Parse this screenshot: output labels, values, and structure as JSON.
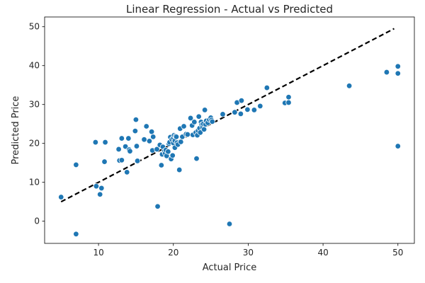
{
  "chart_data": {
    "type": "scatter",
    "title": "Linear Regression - Actual vs Predicted",
    "xlabel": "Actual Price",
    "ylabel": "Predicted Price",
    "xlim": [
      2.8,
      52.2
    ],
    "ylim": [
      -5.7,
      52.5
    ],
    "xticks": [
      10,
      20,
      30,
      40,
      50
    ],
    "yticks": [
      0,
      10,
      20,
      30,
      40,
      50
    ],
    "grid": false,
    "marker_color": "#1f77b4",
    "reference_line": {
      "style": "dashed",
      "color": "#000000",
      "x": [
        5,
        49.5
      ],
      "y": [
        5,
        49.5
      ]
    },
    "series": [
      {
        "x": [
          5.0,
          7.0,
          7.0,
          9.6,
          9.7,
          10.2,
          10.4,
          10.8,
          10.9,
          12.7,
          12.8,
          13.1,
          13.1,
          13.6,
          13.8,
          14.0,
          14.1,
          14.2,
          14.9,
          15.0,
          15.1,
          15.2,
          16.1,
          16.4,
          16.8,
          17.1,
          17.2,
          17.3,
          17.8,
          17.9,
          18.2,
          18.4,
          18.5,
          18.6,
          18.8,
          18.9,
          19.0,
          19.1,
          19.3,
          19.4,
          19.5,
          19.6,
          19.7,
          19.8,
          19.9,
          20.0,
          20.0,
          20.1,
          20.2,
          20.2,
          20.3,
          20.4,
          20.5,
          20.6,
          20.8,
          20.9,
          21.0,
          21.2,
          21.4,
          21.7,
          21.9,
          22.3,
          22.5,
          22.6,
          22.8,
          23.0,
          23.1,
          23.2,
          23.3,
          23.4,
          23.5,
          23.6,
          23.7,
          23.8,
          23.9,
          24.0,
          24.1,
          24.2,
          24.3,
          24.4,
          24.6,
          24.8,
          25.0,
          25.1,
          25.2,
          26.6,
          27.5,
          28.2,
          28.5,
          29.0,
          29.1,
          29.9,
          30.8,
          31.6,
          32.5,
          34.9,
          35.4,
          35.4,
          43.5,
          48.5,
          50.0,
          50.0,
          50.0
        ],
        "y": [
          6.2,
          14.5,
          -3.3,
          20.3,
          9.0,
          6.9,
          8.5,
          15.3,
          20.3,
          18.5,
          15.6,
          15.7,
          21.3,
          19.2,
          12.6,
          21.3,
          18.4,
          18.0,
          23.2,
          26.1,
          19.3,
          15.5,
          21.0,
          24.4,
          20.6,
          23.0,
          18.2,
          21.7,
          18.5,
          3.8,
          19.6,
          14.4,
          17.2,
          19.1,
          18.0,
          17.5,
          18.3,
          16.8,
          17.9,
          19.9,
          20.3,
          21.6,
          16.0,
          21.0,
          16.9,
          21.4,
          20.1,
          22.1,
          20.7,
          18.9,
          21.9,
          21.7,
          20.2,
          19.7,
          13.2,
          23.8,
          20.4,
          21.7,
          24.4,
          22.4,
          22.3,
          26.5,
          24.6,
          22.2,
          25.5,
          22.8,
          16.1,
          22.1,
          23.3,
          26.9,
          23.9,
          22.8,
          25.5,
          24.8,
          24.1,
          25.0,
          23.6,
          28.6,
          24.9,
          25.8,
          25.3,
          26.1,
          26.6,
          26.0,
          25.6,
          27.5,
          -0.7,
          28.0,
          30.5,
          27.6,
          31.0,
          28.7,
          28.6,
          29.6,
          34.3,
          30.4,
          30.5,
          31.9,
          34.8,
          38.3,
          39.8,
          38.0,
          19.3
        ]
      }
    ]
  }
}
